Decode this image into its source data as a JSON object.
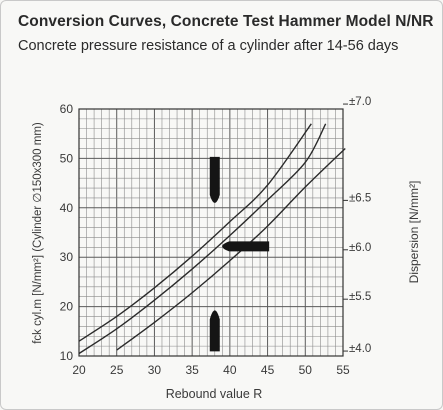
{
  "header": {
    "title": "Conversion Curves, Concrete Test Hammer Model N/NR",
    "subtitle": "Concrete pressure resistance of a cylinder after 14-56 days"
  },
  "chart_data": {
    "type": "line",
    "title": "Conversion Curves, Concrete Test Hammer Model N/NR",
    "subtitle": "Concrete pressure resistance of a cylinder after 14-56 days",
    "xlabel": "Rebound value R",
    "ylabel": "fck cyl.m [N/mm²] (Cylinder ∅150x300 mm)",
    "y2label": "Dispersion [N/mm²]",
    "xlim": [
      20,
      55
    ],
    "ylim": [
      10,
      60
    ],
    "x_ticks": [
      "20",
      "25",
      "30",
      "35",
      "40",
      "45",
      "50",
      "55"
    ],
    "y_ticks": [
      "10",
      "20",
      "30",
      "40",
      "50",
      "60"
    ],
    "y2_ticks": [
      {
        "label": "±4.0",
        "y": 11
      },
      {
        "label": "±5.5",
        "y": 21.5
      },
      {
        "label": "±6.0",
        "y": 31.5
      },
      {
        "label": "±6.5",
        "y": 41.5
      },
      {
        "label": "±7.0",
        "y": 61
      }
    ],
    "grid": true,
    "series": [
      {
        "values": [
          [
            20,
            13
          ],
          [
            25,
            18
          ],
          [
            30,
            23.8
          ],
          [
            35,
            30.2
          ],
          [
            40,
            37.2
          ],
          [
            45,
            44.6
          ],
          [
            50.8,
            57
          ]
        ]
      },
      {
        "values": [
          [
            20,
            10.5
          ],
          [
            25,
            15.5
          ],
          [
            30,
            21.3
          ],
          [
            35,
            27.6
          ],
          [
            40,
            34.4
          ],
          [
            45,
            41.6
          ],
          [
            50,
            49.2
          ],
          [
            52.7,
            57
          ]
        ]
      },
      {
        "values": [
          [
            25,
            11.2
          ],
          [
            30,
            16.8
          ],
          [
            35,
            22.8
          ],
          [
            40,
            29.3
          ],
          [
            45,
            36.3
          ],
          [
            50,
            44.2
          ],
          [
            55.3,
            52
          ]
        ]
      }
    ],
    "markers": [
      {
        "x": 38,
        "y": 41,
        "direction": "down"
      },
      {
        "x": 41.5,
        "y": 32.2,
        "direction": "left"
      },
      {
        "x": 38,
        "y": 17,
        "direction": "up"
      }
    ]
  }
}
